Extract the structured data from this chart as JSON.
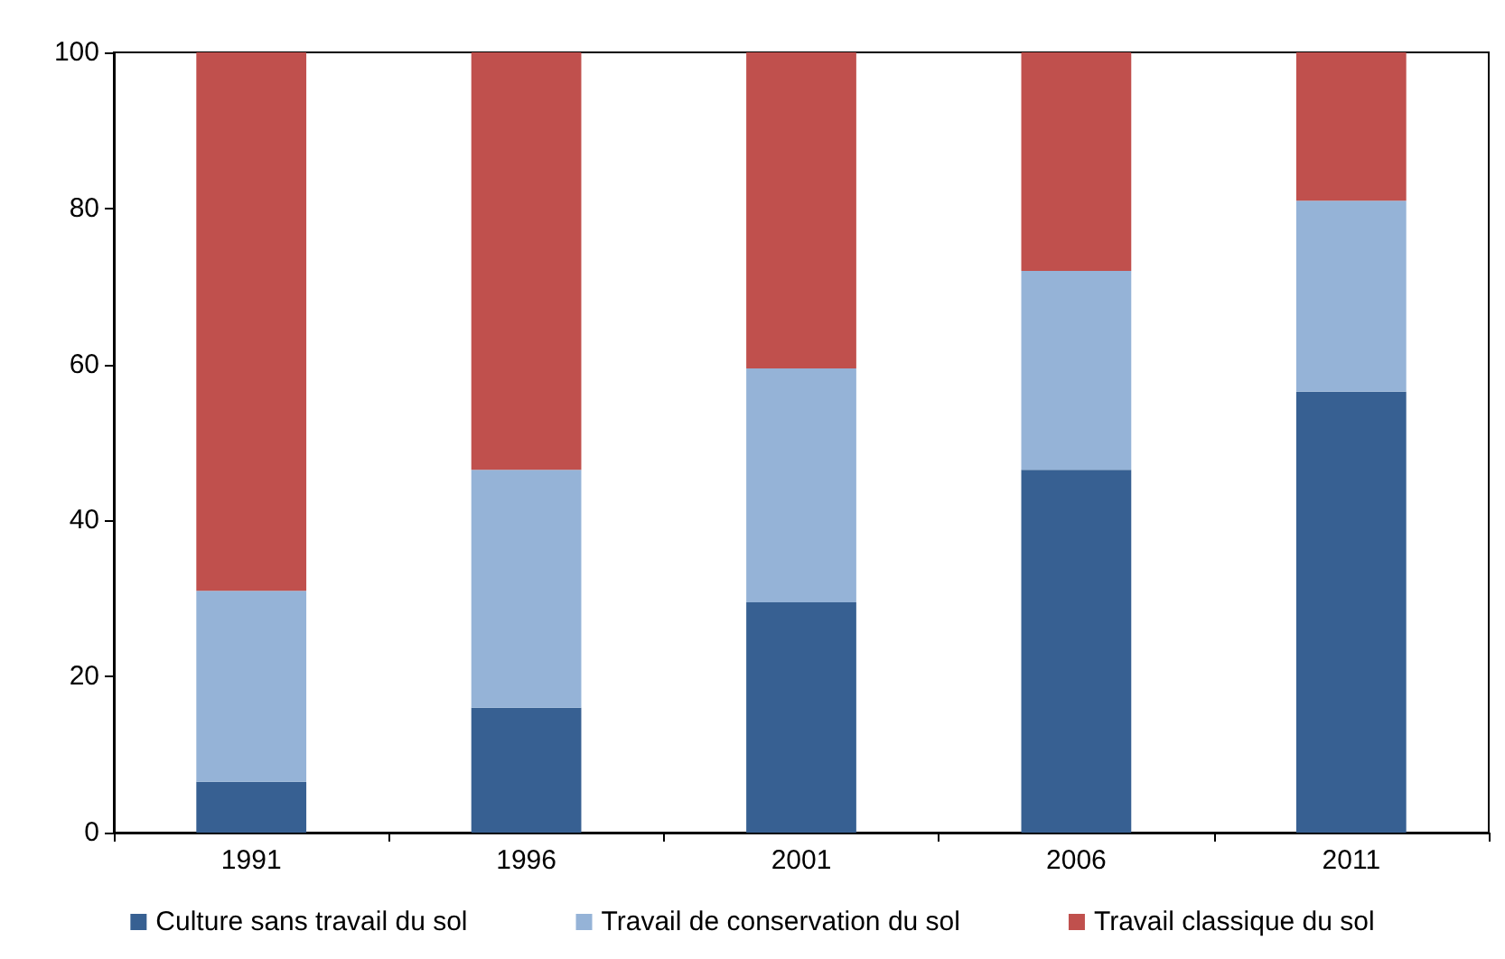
{
  "chart_data": {
    "type": "bar",
    "stacked": true,
    "categories": [
      "1991",
      "1996",
      "2001",
      "2006",
      "2011"
    ],
    "series": [
      {
        "name": "Culture sans travail du sol",
        "color": "#376092",
        "values": [
          6.5,
          16,
          29.5,
          46.5,
          56.5
        ]
      },
      {
        "name": "Travail de conservation du sol",
        "color": "#95b3d7",
        "values": [
          24.5,
          30.5,
          30,
          25.5,
          24.5
        ]
      },
      {
        "name": "Travail classique du sol",
        "color": "#c0504d",
        "values": [
          69,
          53.5,
          40.5,
          28,
          19
        ]
      }
    ],
    "ylim": [
      0,
      100
    ],
    "yticks": [
      0,
      20,
      40,
      60,
      80,
      100
    ],
    "grid": false,
    "legend": "bottom"
  }
}
